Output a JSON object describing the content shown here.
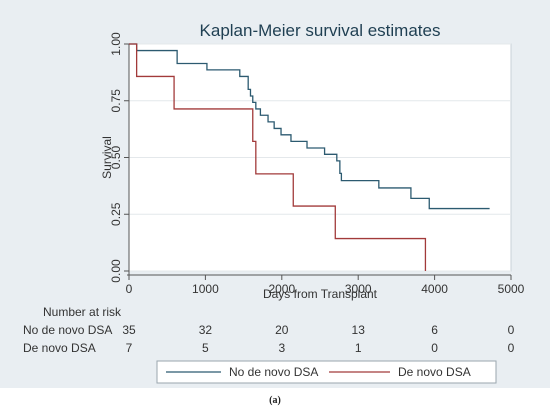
{
  "figure": {
    "caption": "(a)",
    "background": "#e9eef2"
  },
  "chart_data": {
    "type": "line",
    "title": "Kaplan-Meier survival estimates",
    "xlabel": "Days from Transplant",
    "ylabel": "Survival",
    "xlim": [
      0,
      5000
    ],
    "ylim": [
      0,
      1
    ],
    "x_ticks": [
      0,
      1000,
      2000,
      3000,
      4000,
      5000
    ],
    "y_ticks": [
      0,
      0.25,
      0.5,
      0.75,
      1
    ],
    "y_tick_labels": [
      "0.00",
      "0.25",
      "0.50",
      "0.75",
      "1.00"
    ],
    "grid": true,
    "legend_position": "bottom",
    "series": [
      {
        "name": "No de novo DSA",
        "color": "#2c5a70",
        "steps": [
          [
            0,
            1.0
          ],
          [
            100,
            0.971
          ],
          [
            630,
            0.914
          ],
          [
            1020,
            0.886
          ],
          [
            1450,
            0.857
          ],
          [
            1560,
            0.8
          ],
          [
            1590,
            0.771
          ],
          [
            1620,
            0.743
          ],
          [
            1660,
            0.714
          ],
          [
            1720,
            0.686
          ],
          [
            1820,
            0.657
          ],
          [
            1900,
            0.628
          ],
          [
            1990,
            0.6
          ],
          [
            2120,
            0.571
          ],
          [
            2330,
            0.542
          ],
          [
            2560,
            0.514
          ],
          [
            2720,
            0.485
          ],
          [
            2760,
            0.43
          ],
          [
            2780,
            0.398
          ],
          [
            3270,
            0.366
          ],
          [
            3690,
            0.32
          ],
          [
            3930,
            0.275
          ],
          [
            4720,
            0.275
          ]
        ]
      },
      {
        "name": "De novo DSA",
        "color": "#a23a3a",
        "steps": [
          [
            0,
            1.0
          ],
          [
            100,
            0.857
          ],
          [
            590,
            0.714
          ],
          [
            1620,
            0.571
          ],
          [
            1660,
            0.428
          ],
          [
            2150,
            0.286
          ],
          [
            2700,
            0.143
          ],
          [
            3880,
            0.143
          ],
          [
            3880,
            0.0
          ]
        ]
      }
    ],
    "risk_table": {
      "header": "Number at risk",
      "x": [
        0,
        1000,
        2000,
        3000,
        4000,
        5000
      ],
      "rows": [
        {
          "label": "No de novo DSA",
          "values": [
            "35",
            "32",
            "20",
            "13",
            "6",
            "0"
          ]
        },
        {
          "label": "De novo DSA",
          "values": [
            "7",
            "5",
            "3",
            "1",
            "0",
            "0"
          ]
        }
      ]
    }
  }
}
